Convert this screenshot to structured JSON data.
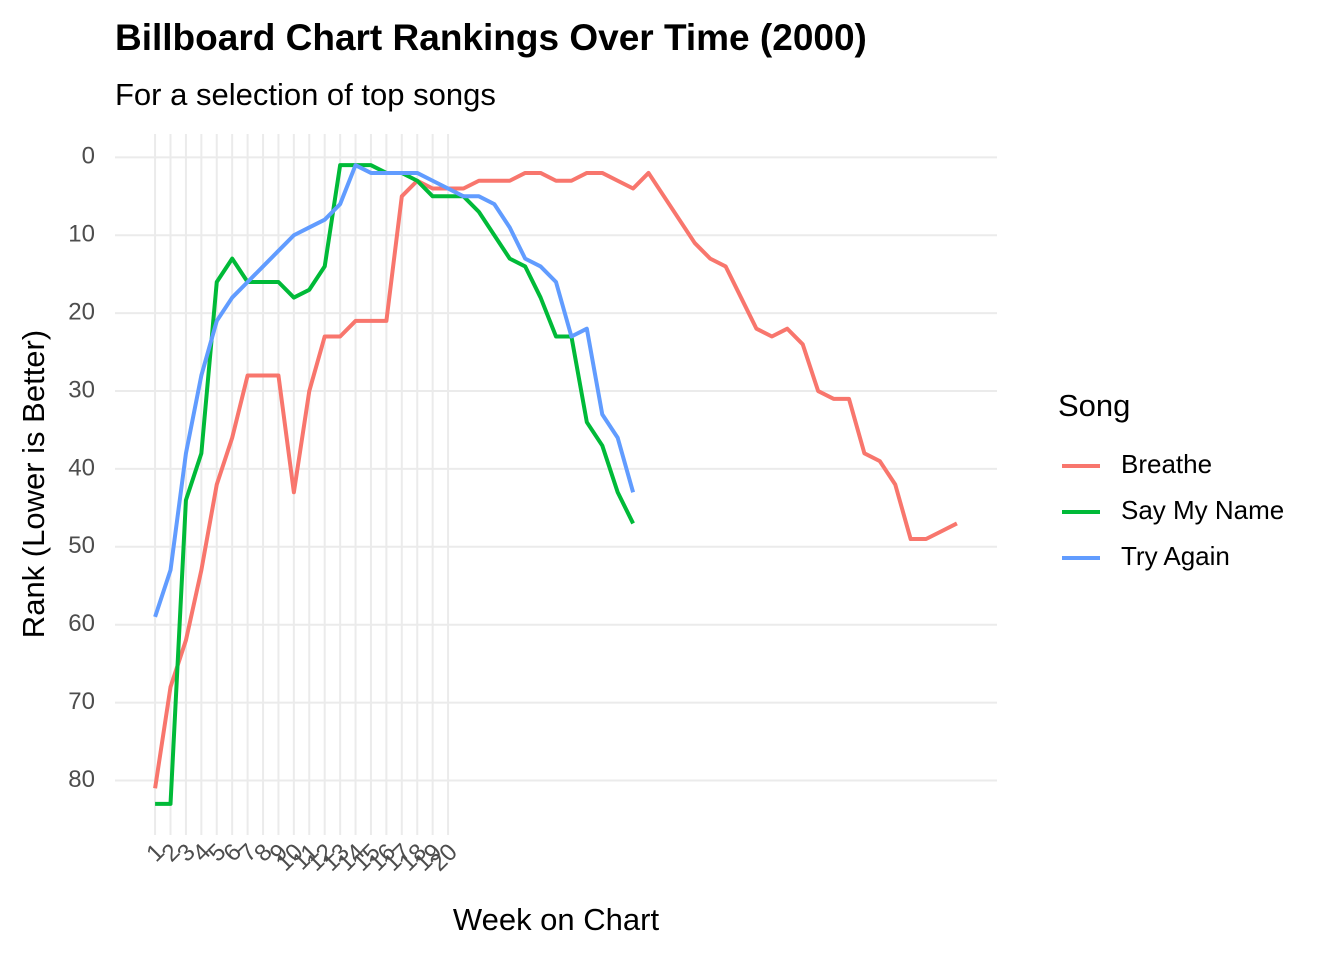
{
  "chart_data": {
    "type": "line",
    "title": "Billboard Chart Rankings Over Time (2000)",
    "subtitle": "For a selection of top songs",
    "x_label": "Week on Chart",
    "y_label": "Rank (Lower is Better)",
    "legend_title": "Song",
    "legend_position": "right",
    "grid": true,
    "y_reverse": true,
    "x": [
      1,
      2,
      3,
      4,
      5,
      6,
      7,
      8,
      9,
      10,
      11,
      12,
      13,
      14,
      15,
      16,
      17,
      18,
      19,
      20,
      21,
      22,
      23,
      24,
      25,
      26,
      27,
      28,
      29,
      30,
      31,
      32,
      33,
      34,
      35,
      36,
      37,
      38,
      39,
      40,
      41,
      42,
      43,
      44,
      45,
      46,
      47,
      48,
      49,
      50,
      51,
      52,
      53
    ],
    "xlim": [
      -1.6,
      55.6
    ],
    "xticks": [
      1,
      2,
      3,
      4,
      5,
      6,
      7,
      8,
      9,
      10,
      11,
      12,
      13,
      14,
      15,
      16,
      17,
      18,
      19,
      20
    ],
    "ylim": [
      -3,
      87
    ],
    "yticks": [
      0,
      10,
      20,
      30,
      40,
      50,
      60,
      70,
      80
    ],
    "series": [
      {
        "name": "Breathe",
        "color": "#F8766D",
        "values": [
          81,
          68,
          62,
          53,
          42,
          36,
          28,
          28,
          28,
          43,
          30,
          23,
          23,
          21,
          21,
          21,
          5,
          3,
          4,
          4,
          4,
          3,
          3,
          3,
          2,
          2,
          3,
          3,
          2,
          2,
          3,
          4,
          2,
          5,
          8,
          11,
          13,
          14,
          18,
          22,
          23,
          22,
          24,
          30,
          31,
          31,
          38,
          39,
          42,
          49,
          49,
          48,
          47
        ]
      },
      {
        "name": "Say My Name",
        "color": "#00BA38",
        "values": [
          83,
          83,
          44,
          38,
          16,
          13,
          16,
          16,
          16,
          18,
          17,
          14,
          1,
          1,
          1,
          2,
          2,
          3,
          5,
          5,
          5,
          7,
          10,
          13,
          14,
          18,
          23,
          23,
          34,
          37,
          43,
          47,
          null,
          null,
          null,
          null,
          null,
          null,
          null,
          null,
          null,
          null,
          null,
          null,
          null,
          null,
          null,
          null,
          null,
          null,
          null,
          null,
          null
        ]
      },
      {
        "name": "Try Again",
        "color": "#619CFF",
        "values": [
          59,
          53,
          38,
          28,
          21,
          18,
          16,
          14,
          12,
          10,
          9,
          8,
          6,
          1,
          2,
          2,
          2,
          2,
          3,
          4,
          5,
          5,
          6,
          9,
          13,
          14,
          16,
          23,
          22,
          33,
          36,
          43,
          null,
          null,
          null,
          null,
          null,
          null,
          null,
          null,
          null,
          null,
          null,
          null,
          null,
          null,
          null,
          null,
          null,
          null,
          null,
          null,
          null
        ]
      }
    ]
  }
}
